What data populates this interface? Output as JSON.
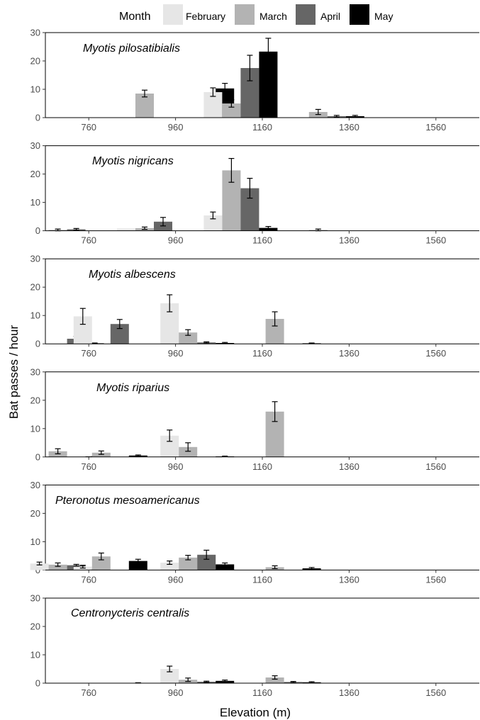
{
  "chart_data": {
    "type": "bar",
    "xlabel": "Elevation (m)",
    "ylabel": "Bat passes / hour",
    "ylim": [
      0,
      30
    ],
    "y_ticks": [
      0,
      10,
      20,
      30
    ],
    "x_ticks": [
      760,
      960,
      1160,
      1360,
      1560
    ],
    "legend": {
      "title": "Month",
      "placement": "top",
      "entries": [
        {
          "name": "February",
          "color": "#e6e6e6"
        },
        {
          "name": "March",
          "color": "#b3b3b3"
        },
        {
          "name": "April",
          "color": "#666666"
        },
        {
          "name": "May",
          "color": "#000000"
        }
      ]
    },
    "elevations": [
      710,
      810,
      910,
      1010,
      1110,
      1210,
      1310,
      1410,
      1510,
      1610
    ],
    "panels": [
      {
        "title": "Myotis pilosatibialis",
        "series": [
          {
            "name": "February",
            "values": [
              0,
              0,
              0,
              0,
              9,
              0,
              0,
              0,
              0,
              0
            ],
            "errors": [
              0,
              0,
              0,
              0,
              1.5,
              0,
              0,
              0,
              0,
              0
            ]
          },
          {
            "name": "March",
            "values": [
              0,
              0,
              8.5,
              0,
              5,
              0,
              2,
              0,
              0,
              0
            ],
            "errors": [
              0,
              0,
              1.2,
              0,
              1.3,
              0,
              0.9,
              0,
              0,
              0
            ]
          },
          {
            "name": "April",
            "values": [
              0,
              0,
              0,
              0,
              17.5,
              0,
              0.5,
              0,
              0,
              0
            ],
            "errors": [
              0,
              0,
              0,
              0,
              4.5,
              0,
              0.3,
              0,
              0,
              0
            ]
          },
          {
            "name": "May",
            "values": [
              0,
              0,
              0,
              10.3,
              23.3,
              0,
              0.5,
              0,
              0,
              0
            ],
            "errors": [
              0,
              0,
              0,
              1.8,
              4.7,
              0,
              0.3,
              0,
              0,
              0
            ]
          }
        ]
      },
      {
        "title": "Myotis nigricans",
        "series": [
          {
            "name": "February",
            "values": [
              0,
              0,
              0.8,
              0,
              5.4,
              0,
              0,
              0,
              0,
              0
            ],
            "errors": [
              0,
              0,
              0,
              0,
              1.2,
              0,
              0,
              0,
              0,
              0
            ]
          },
          {
            "name": "March",
            "values": [
              0.3,
              0,
              0.9,
              0,
              21.3,
              0,
              0.3,
              0,
              0,
              0
            ],
            "errors": [
              0.3,
              0,
              0.4,
              0,
              4.2,
              0,
              0.3,
              0,
              0,
              0
            ]
          },
          {
            "name": "April",
            "values": [
              0.5,
              0,
              3.2,
              0,
              15,
              0,
              0,
              0,
              0,
              0
            ],
            "errors": [
              0.3,
              0,
              1.5,
              0,
              3.5,
              0,
              0,
              0,
              0,
              0
            ]
          },
          {
            "name": "May",
            "values": [
              0,
              0.2,
              0,
              0,
              1,
              0,
              0,
              0,
              0,
              0
            ],
            "errors": [
              0,
              0.1,
              0,
              0,
              0.5,
              0,
              0,
              0,
              0,
              0
            ]
          }
        ]
      },
      {
        "title": "Myotis albescens",
        "series": [
          {
            "name": "February",
            "values": [
              0,
              9.7,
              0,
              14.3,
              0,
              0,
              0,
              0,
              0,
              0
            ],
            "errors": [
              0,
              2.8,
              0,
              3,
              0,
              0,
              0,
              0,
              0,
              0
            ]
          },
          {
            "name": "March",
            "values": [
              0,
              0,
              0,
              4,
              0,
              8.8,
              0,
              0,
              0,
              0
            ],
            "errors": [
              0,
              0,
              0,
              1,
              0,
              2.5,
              0,
              0,
              0,
              0
            ]
          },
          {
            "name": "April",
            "values": [
              1.8,
              7,
              0,
              0.5,
              0,
              0,
              0,
              0,
              0,
              0
            ],
            "errors": [
              0.8,
              1.6,
              0,
              0.2,
              0,
              0,
              0,
              0,
              0,
              0
            ]
          },
          {
            "name": "May",
            "values": [
              0.2,
              0,
              0,
              0.3,
              0,
              0.2,
              0,
              0,
              0,
              0
            ],
            "errors": [
              0.1,
              0,
              0,
              0.2,
              0,
              0.1,
              0,
              0,
              0,
              0
            ]
          }
        ]
      },
      {
        "title": "Myotis riparius",
        "series": [
          {
            "name": "February",
            "values": [
              0,
              0,
              0,
              7.5,
              0,
              0,
              0,
              0,
              0,
              0
            ],
            "errors": [
              0,
              0,
              0,
              2,
              0,
              0,
              0,
              0,
              0,
              0
            ]
          },
          {
            "name": "March",
            "values": [
              2,
              1.5,
              0,
              3.5,
              0,
              16,
              0,
              0,
              0,
              0
            ],
            "errors": [
              0.9,
              0.6,
              0,
              1.5,
              0,
              3.5,
              0,
              0,
              0,
              0
            ]
          },
          {
            "name": "April",
            "values": [
              0,
              0,
              0,
              0,
              0,
              0,
              0,
              0,
              0,
              0
            ],
            "errors": [
              0,
              0,
              0,
              0,
              0,
              0,
              0,
              0,
              0,
              0
            ]
          },
          {
            "name": "May",
            "values": [
              0.2,
              0.5,
              0,
              0.2,
              0,
              0,
              0,
              0,
              0,
              0
            ],
            "errors": [
              0.1,
              0.2,
              0,
              0.1,
              0,
              0,
              0,
              0,
              0,
              0
            ]
          }
        ]
      },
      {
        "title": "Pteronotus mesoamericanus",
        "series": [
          {
            "name": "February",
            "values": [
              2.3,
              1.2,
              0,
              2.6,
              0,
              0,
              0,
              0,
              0,
              0
            ],
            "errors": [
              0.5,
              0.5,
              0,
              0.6,
              0,
              0,
              0,
              0,
              0,
              0
            ]
          },
          {
            "name": "March",
            "values": [
              1.9,
              4.8,
              0,
              4.4,
              0,
              1,
              0,
              0,
              0,
              0
            ],
            "errors": [
              0.6,
              1.2,
              0,
              0.8,
              0,
              0.5,
              0,
              0,
              0,
              0
            ]
          },
          {
            "name": "April",
            "values": [
              1.7,
              0,
              0,
              5.4,
              0,
              0,
              0,
              0,
              0,
              0
            ],
            "errors": [
              0.3,
              0,
              0,
              1.6,
              0,
              0,
              0,
              0,
              0,
              0
            ]
          },
          {
            "name": "May",
            "values": [
              0.2,
              3.2,
              0,
              2,
              0,
              0.6,
              0,
              0,
              0,
              0
            ],
            "errors": [
              0.1,
              0.6,
              0,
              0.5,
              0,
              0.3,
              0,
              0,
              0,
              0
            ]
          }
        ]
      },
      {
        "title": "Centronycteris centralis",
        "series": [
          {
            "name": "February",
            "values": [
              0,
              0,
              0,
              5,
              0,
              0,
              0,
              0,
              0,
              0
            ],
            "errors": [
              0,
              0,
              0,
              1,
              0,
              0,
              0,
              0,
              0,
              0
            ]
          },
          {
            "name": "March",
            "values": [
              0,
              0,
              0,
              1.2,
              0,
              2,
              0,
              0,
              0,
              0
            ],
            "errors": [
              0,
              0,
              0,
              0.6,
              0,
              0.6,
              0,
              0,
              0,
              0
            ]
          },
          {
            "name": "April",
            "values": [
              0,
              0,
              0,
              0.5,
              0,
              0.4,
              0,
              0,
              0,
              0
            ],
            "errors": [
              0,
              0,
              0,
              0.2,
              0,
              0.2,
              0,
              0,
              0,
              0
            ]
          },
          {
            "name": "May",
            "values": [
              0,
              0.1,
              0.5,
              0.8,
              0,
              0.3,
              0,
              0,
              0,
              0
            ],
            "errors": [
              0,
              0.05,
              0.3,
              0.3,
              0,
              0.2,
              0,
              0,
              0,
              0
            ]
          }
        ]
      }
    ]
  }
}
